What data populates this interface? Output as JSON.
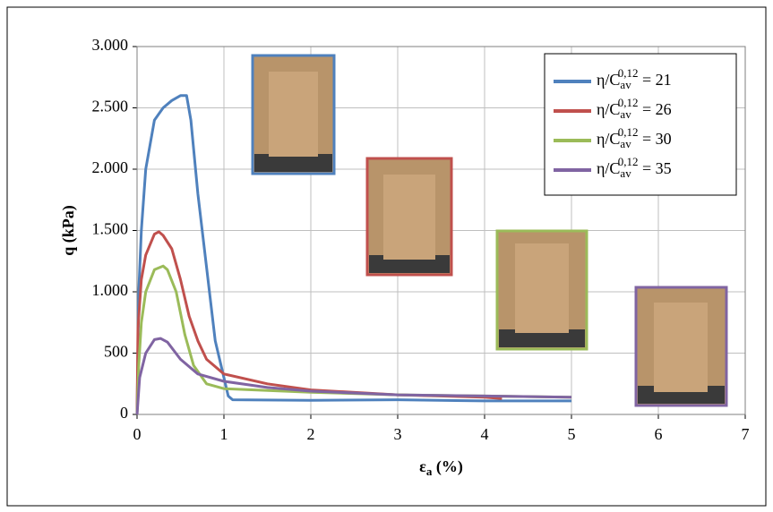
{
  "chart_data": {
    "type": "line",
    "x_label": {
      "main": "ε",
      "sub": "a",
      "rest": " (%)"
    },
    "y_label": "q (kPa)",
    "xlim": [
      0,
      7
    ],
    "xticks": [
      0,
      1,
      2,
      3,
      4,
      5,
      6,
      7
    ],
    "ylim": [
      0,
      3000
    ],
    "yticks": [
      0,
      500,
      {
        "value": 1000,
        "label": "1.000"
      },
      {
        "value": 1500,
        "label": "1.500"
      },
      {
        "value": 2000,
        "label": "2.000"
      },
      {
        "value": 2500,
        "label": "2.500"
      },
      {
        "value": 3000,
        "label": "3.000"
      }
    ],
    "grid": true,
    "legend": "upper right",
    "series": [
      {
        "name": {
          "base": "η/C",
          "sub": "av",
          "sup": "0,12",
          "rest": " = 21"
        },
        "color": "#4f81bd",
        "x": [
          0,
          0.02,
          0.05,
          0.1,
          0.2,
          0.3,
          0.4,
          0.5,
          0.57,
          0.62,
          0.7,
          0.8,
          0.9,
          1.0,
          1.05,
          1.1,
          2,
          3,
          4,
          5
        ],
        "values": [
          0,
          1000,
          1500,
          2000,
          2400,
          2500,
          2560,
          2600,
          2600,
          2400,
          1800,
          1200,
          600,
          300,
          150,
          120,
          115,
          120,
          110,
          110
        ]
      },
      {
        "name": {
          "base": "η/C",
          "sub": "av",
          "sup": "0,12",
          "rest": " = 26"
        },
        "color": "#c0504d",
        "x": [
          0,
          0.01,
          0.05,
          0.1,
          0.2,
          0.25,
          0.3,
          0.4,
          0.5,
          0.6,
          0.7,
          0.8,
          1.0,
          1.5,
          2,
          3,
          4,
          4.2
        ],
        "values": [
          0,
          700,
          1100,
          1300,
          1470,
          1490,
          1460,
          1350,
          1100,
          800,
          600,
          450,
          330,
          250,
          200,
          160,
          140,
          130
        ]
      },
      {
        "name": {
          "base": "η/C",
          "sub": "av",
          "sup": "0,12",
          "rest": " = 30"
        },
        "color": "#9bbb59",
        "x": [
          0,
          0.02,
          0.05,
          0.1,
          0.2,
          0.3,
          0.35,
          0.45,
          0.55,
          0.65,
          0.8,
          1.0,
          2,
          3,
          4,
          5
        ],
        "values": [
          0,
          400,
          750,
          1000,
          1180,
          1210,
          1180,
          1000,
          650,
          400,
          250,
          210,
          180,
          160,
          150,
          140
        ]
      },
      {
        "name": {
          "base": "η/C",
          "sub": "av",
          "sup": "0,12",
          "rest": " = 35"
        },
        "color": "#8064a2",
        "x": [
          0,
          0.03,
          0.1,
          0.2,
          0.27,
          0.35,
          0.5,
          0.7,
          1.0,
          1.5,
          2,
          3,
          4,
          5
        ],
        "values": [
          0,
          300,
          500,
          610,
          620,
          590,
          450,
          330,
          270,
          220,
          190,
          160,
          150,
          140
        ]
      }
    ]
  }
}
